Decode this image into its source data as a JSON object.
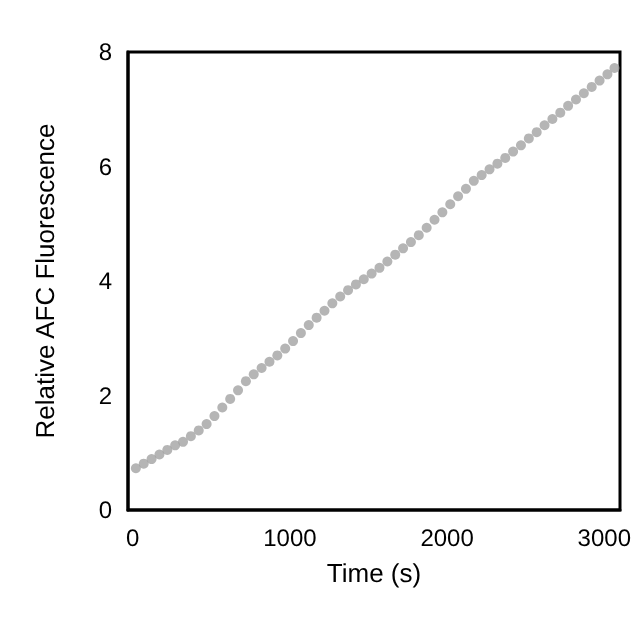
{
  "chart_data": {
    "type": "scatter",
    "xlabel": "Time (s)",
    "ylabel": "Relative AFC Fluorescence",
    "color": "#a3a3a3",
    "marker": "circle",
    "grid": false,
    "xlim": [
      -30,
      3100
    ],
    "xticks": [
      0,
      1000,
      2000,
      3000
    ],
    "ylim": [
      0,
      8
    ],
    "yticks": [
      0,
      2,
      4,
      6,
      8
    ],
    "x": [
      20,
      70,
      120,
      170,
      220,
      270,
      320,
      370,
      420,
      470,
      520,
      570,
      620,
      670,
      720,
      770,
      820,
      870,
      920,
      970,
      1020,
      1070,
      1120,
      1170,
      1220,
      1270,
      1320,
      1370,
      1420,
      1470,
      1520,
      1570,
      1620,
      1670,
      1720,
      1770,
      1820,
      1870,
      1920,
      1970,
      2020,
      2070,
      2120,
      2170,
      2220,
      2270,
      2320,
      2370,
      2420,
      2470,
      2520,
      2570,
      2620,
      2670,
      2720,
      2770,
      2820,
      2870,
      2920,
      2970,
      3020,
      3065
    ],
    "values": [
      0.73,
      0.81,
      0.89,
      0.97,
      1.05,
      1.13,
      1.19,
      1.29,
      1.39,
      1.5,
      1.64,
      1.79,
      1.94,
      2.09,
      2.25,
      2.37,
      2.48,
      2.59,
      2.7,
      2.82,
      2.95,
      3.09,
      3.23,
      3.36,
      3.48,
      3.61,
      3.73,
      3.84,
      3.94,
      4.03,
      4.13,
      4.23,
      4.34,
      4.46,
      4.57,
      4.68,
      4.8,
      4.93,
      5.07,
      5.2,
      5.34,
      5.48,
      5.61,
      5.75,
      5.85,
      5.95,
      6.05,
      6.15,
      6.26,
      6.37,
      6.49,
      6.6,
      6.72,
      6.83,
      6.94,
      7.06,
      7.17,
      7.28,
      7.39,
      7.5,
      7.61,
      7.72
    ]
  }
}
